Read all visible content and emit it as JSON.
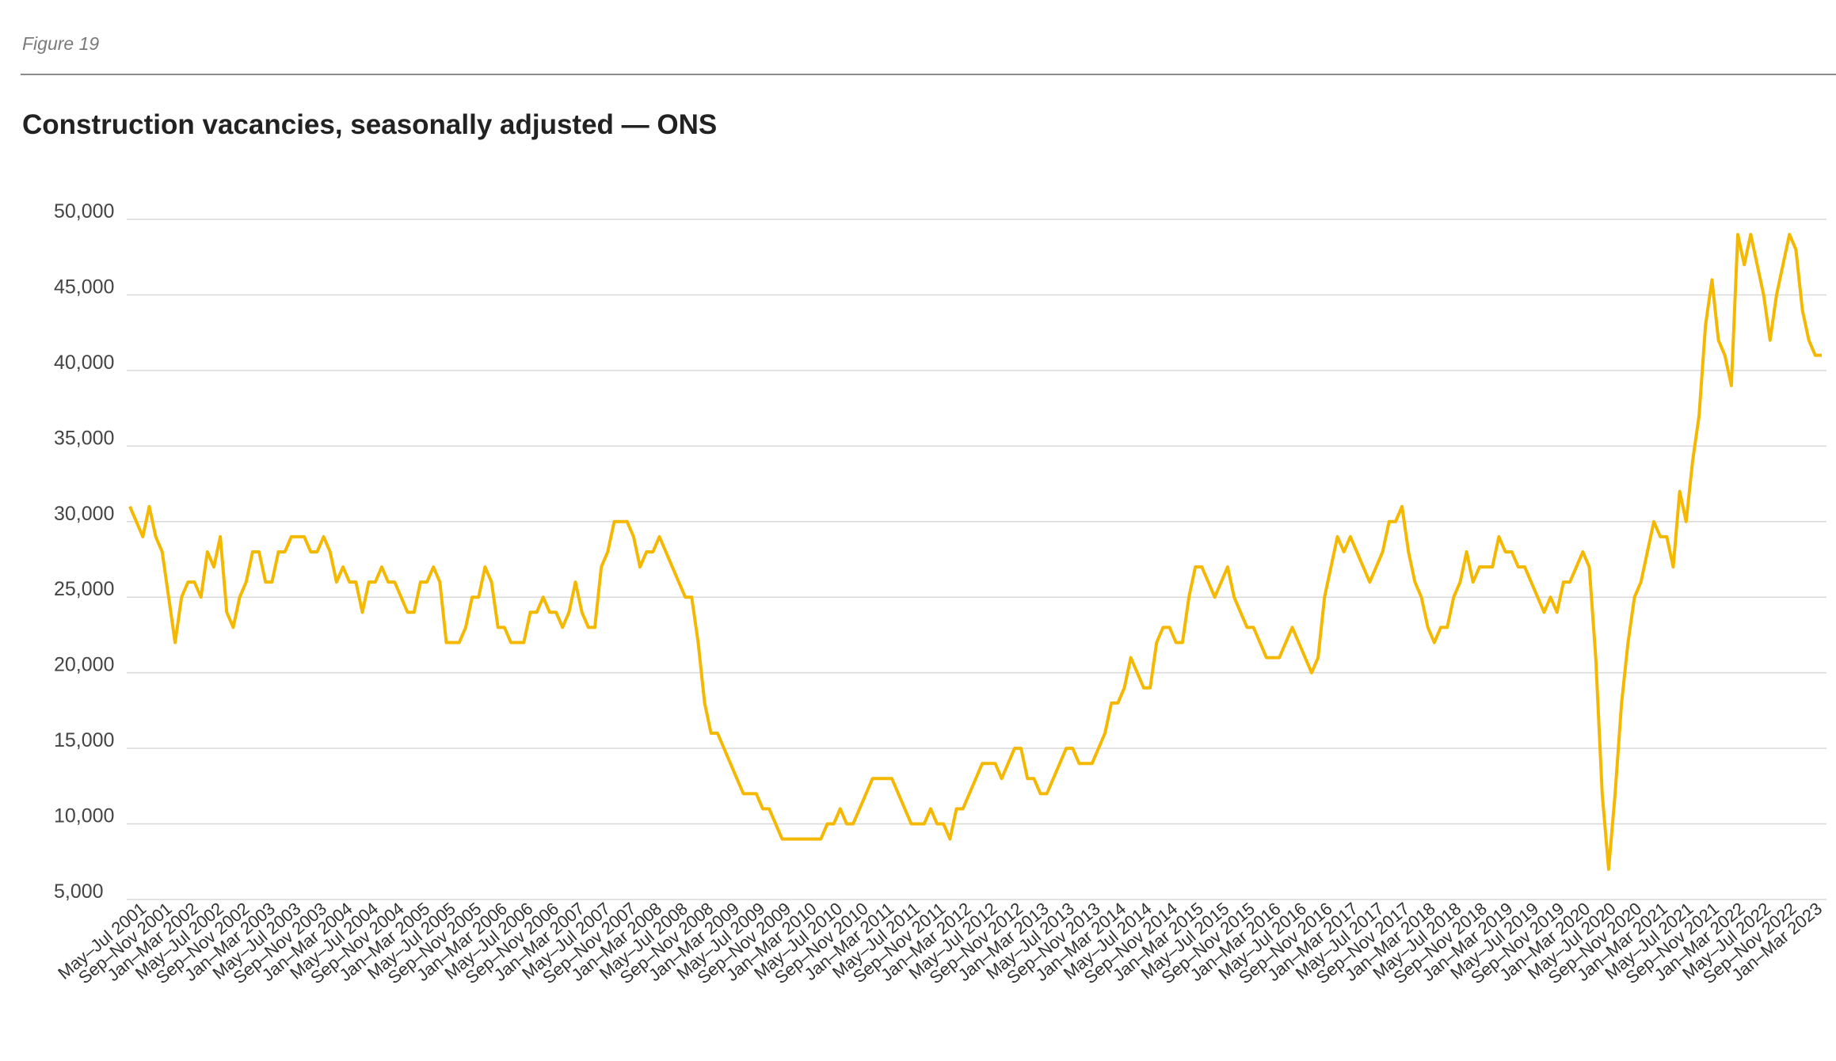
{
  "figure_label": "Figure 19",
  "chart_data": {
    "type": "line",
    "title": "Construction vacancies, seasonally adjusted — ONS",
    "xlabel": "",
    "ylabel": "",
    "ylim": [
      5000,
      50000
    ],
    "y_ticks": [
      5000,
      10000,
      15000,
      20000,
      25000,
      30000,
      35000,
      40000,
      45000,
      50000
    ],
    "y_tick_labels": [
      "5,000",
      "10,000",
      "15,000",
      "20,000",
      "25,000",
      "30,000",
      "35,000",
      "40,000",
      "45,000",
      "50,000"
    ],
    "grid": true,
    "legend": "none",
    "line_color": "#F5B800",
    "x_labels": [
      "May–Jul 2001",
      "Sep–Nov 2001",
      "Jan–Mar 2002",
      "May–Jul 2002",
      "Sep–Nov 2002",
      "Jan–Mar 2003",
      "May–Jul 2003",
      "Sep–Nov 2003",
      "Jan–Mar 2004",
      "May–Jul 2004",
      "Sep–Nov 2004",
      "Jan–Mar 2005",
      "May–Jul 2005",
      "Sep–Nov 2005",
      "Jan–Mar 2006",
      "May–Jul 2006",
      "Sep–Nov 2006",
      "Jan–Mar 2007",
      "May–Jul 2007",
      "Sep–Nov 2007",
      "Jan–Mar 2008",
      "May–Jul 2008",
      "Sep–Nov 2008",
      "Jan–Mar 2009",
      "May–Jul 2009",
      "Sep–Nov 2009",
      "Jan–Mar 2010",
      "May–Jul 2010",
      "Sep–Nov 2010",
      "Jan–Mar 2011",
      "May–Jul 2011",
      "Sep–Nov 2011",
      "Jan–Mar 2012",
      "May–Jul 2012",
      "Sep–Nov 2012",
      "Jan–Mar 2013",
      "May–Jul 2013",
      "Sep–Nov 2013",
      "Jan–Mar 2014",
      "May–Jul 2014",
      "Sep–Nov 2014",
      "Jan–Mar 2015",
      "May–Jul 2015",
      "Sep–Nov 2015",
      "Jan–Mar 2016",
      "May–Jul 2016",
      "Sep–Nov 2016",
      "Jan–Mar 2017",
      "May–Jul 2017",
      "Sep–Nov 2017",
      "Jan–Mar 2018",
      "May–Jul 2018",
      "Sep–Nov 2018",
      "Jan–Mar 2019",
      "May–Jul 2019",
      "Sep–Nov 2019",
      "Jan–Mar 2020",
      "May–Jul 2020",
      "Sep–Nov 2020",
      "Jan–Mar 2021",
      "May–Jul 2021",
      "Sep–Nov 2021",
      "Jan–Mar 2022",
      "May–Jul 2022",
      "Sep–Nov 2022",
      "Jan–Mar 2023"
    ],
    "values": [
      31000,
      30000,
      29000,
      31000,
      29000,
      28000,
      25000,
      22000,
      25000,
      26000,
      26000,
      25000,
      28000,
      27000,
      29000,
      24000,
      23000,
      25000,
      26000,
      28000,
      28000,
      26000,
      26000,
      28000,
      28000,
      29000,
      29000,
      29000,
      28000,
      28000,
      29000,
      28000,
      26000,
      27000,
      26000,
      26000,
      24000,
      26000,
      26000,
      27000,
      26000,
      26000,
      25000,
      24000,
      24000,
      26000,
      26000,
      27000,
      26000,
      22000,
      22000,
      22000,
      23000,
      25000,
      25000,
      27000,
      26000,
      23000,
      23000,
      22000,
      22000,
      22000,
      24000,
      24000,
      25000,
      24000,
      24000,
      23000,
      24000,
      26000,
      24000,
      23000,
      23000,
      27000,
      28000,
      30000,
      30000,
      30000,
      29000,
      27000,
      28000,
      28000,
      29000,
      28000,
      27000,
      26000,
      25000,
      25000,
      22000,
      18000,
      16000,
      16000,
      15000,
      14000,
      13000,
      12000,
      12000,
      12000,
      11000,
      11000,
      10000,
      9000,
      9000,
      9000,
      9000,
      9000,
      9000,
      9000,
      10000,
      10000,
      11000,
      10000,
      10000,
      11000,
      12000,
      13000,
      13000,
      13000,
      13000,
      12000,
      11000,
      10000,
      10000,
      10000,
      11000,
      10000,
      10000,
      9000,
      11000,
      11000,
      12000,
      13000,
      14000,
      14000,
      14000,
      13000,
      14000,
      15000,
      15000,
      13000,
      13000,
      12000,
      12000,
      13000,
      14000,
      15000,
      15000,
      14000,
      14000,
      14000,
      15000,
      16000,
      18000,
      18000,
      19000,
      21000,
      20000,
      19000,
      19000,
      22000,
      23000,
      23000,
      22000,
      22000,
      25000,
      27000,
      27000,
      26000,
      25000,
      26000,
      27000,
      25000,
      24000,
      23000,
      23000,
      22000,
      21000,
      21000,
      21000,
      22000,
      23000,
      22000,
      21000,
      20000,
      21000,
      25000,
      27000,
      29000,
      28000,
      29000,
      28000,
      27000,
      26000,
      27000,
      28000,
      30000,
      30000,
      31000,
      28000,
      26000,
      25000,
      23000,
      22000,
      23000,
      23000,
      25000,
      26000,
      28000,
      26000,
      27000,
      27000,
      27000,
      29000,
      28000,
      28000,
      27000,
      27000,
      26000,
      25000,
      24000,
      25000,
      24000,
      26000,
      26000,
      27000,
      28000,
      27000,
      21000,
      12000,
      7000,
      12000,
      18000,
      22000,
      25000,
      26000,
      28000,
      30000,
      29000,
      29000,
      27000,
      32000,
      30000,
      34000,
      37000,
      43000,
      46000,
      42000,
      41000,
      39000,
      49000,
      47000,
      49000,
      47000,
      45000,
      42000,
      45000,
      47000,
      49000,
      48000,
      44000,
      42000,
      41000,
      41000
    ]
  }
}
